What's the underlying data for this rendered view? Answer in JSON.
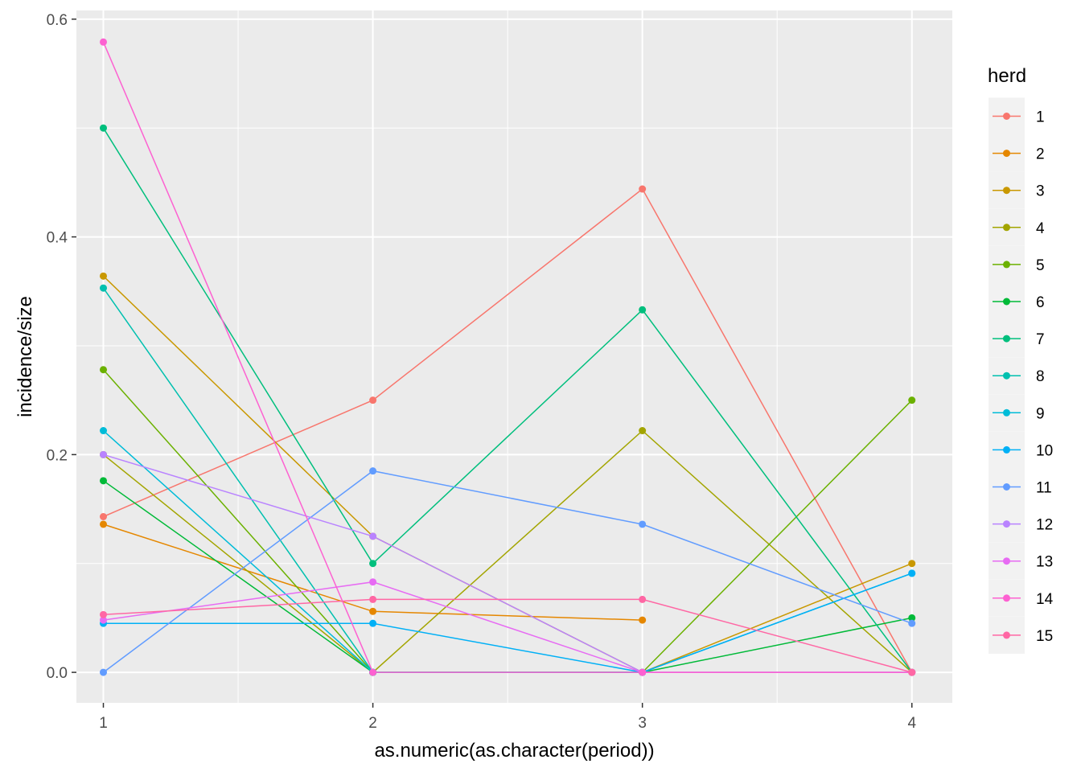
{
  "chart_data": {
    "type": "line",
    "title": "",
    "xlabel": "as.numeric(as.character(period))",
    "ylabel": "incidence/size",
    "xlim": [
      0.9,
      4.15
    ],
    "ylim": [
      -0.028,
      0.608
    ],
    "x_ticks": [
      1,
      2,
      3,
      4
    ],
    "y_ticks": [
      0.0,
      0.2,
      0.4,
      0.6
    ],
    "x_tick_labels": [
      "1",
      "2",
      "3",
      "4"
    ],
    "y_tick_labels": [
      "0.0",
      "0.2",
      "0.4",
      "0.6"
    ],
    "grid": true,
    "legend": {
      "title": "herd",
      "position": "right"
    },
    "x": [
      1,
      2,
      3,
      4
    ],
    "series": [
      {
        "name": "1",
        "color": "#F8766D",
        "values": [
          0.143,
          0.25,
          0.444,
          0.0
        ]
      },
      {
        "name": "2",
        "color": "#E58700",
        "values": [
          0.136,
          0.056,
          0.048,
          null
        ]
      },
      {
        "name": "3",
        "color": "#C99800",
        "values": [
          0.364,
          0.125,
          0.0,
          0.1
        ]
      },
      {
        "name": "4",
        "color": "#A3A500",
        "values": [
          0.2,
          0.0,
          0.222,
          0.0
        ]
      },
      {
        "name": "5",
        "color": "#6BB100",
        "values": [
          0.278,
          0.0,
          0.0,
          0.25
        ]
      },
      {
        "name": "6",
        "color": "#00BA38",
        "values": [
          0.176,
          0.0,
          0.0,
          0.05
        ]
      },
      {
        "name": "7",
        "color": "#00BF7D",
        "values": [
          0.5,
          0.1,
          0.333,
          0.0
        ]
      },
      {
        "name": "8",
        "color": "#00C0AF",
        "values": [
          0.353,
          0.0,
          0.0,
          0.0
        ]
      },
      {
        "name": "9",
        "color": "#00BCD8",
        "values": [
          0.222,
          0.0,
          0.0,
          0.091
        ]
      },
      {
        "name": "10",
        "color": "#00B0F6",
        "values": [
          0.045,
          0.045,
          0.0,
          0.091
        ]
      },
      {
        "name": "11",
        "color": "#619CFF",
        "values": [
          0.0,
          0.185,
          0.136,
          0.045
        ]
      },
      {
        "name": "12",
        "color": "#B983FF",
        "values": [
          0.2,
          0.125,
          0.0,
          0.0
        ]
      },
      {
        "name": "13",
        "color": "#E76BF3",
        "values": [
          0.048,
          0.083,
          0.0,
          0.0
        ]
      },
      {
        "name": "14",
        "color": "#FD61D1",
        "values": [
          0.579,
          0.0,
          0.0,
          0.0
        ]
      },
      {
        "name": "15",
        "color": "#FF67A4",
        "values": [
          0.053,
          0.067,
          0.067,
          0.0
        ]
      }
    ]
  }
}
